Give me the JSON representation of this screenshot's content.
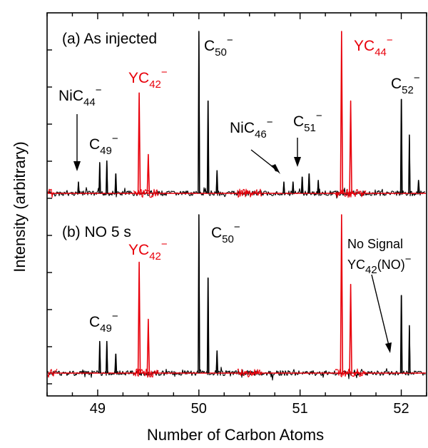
{
  "chart_data": {
    "type": "line",
    "xlabel": "Number of Carbon Atoms",
    "ylabel": "Intensity (arbitrary)",
    "xlim": [
      48.5,
      52.25
    ],
    "x_ticks": [
      "49",
      "50",
      "51",
      "52"
    ],
    "colors": {
      "black": "#000000",
      "red": "#e8000b",
      "baseline": "#e8000b"
    },
    "panels": [
      {
        "id": "a",
        "label": "(a) As injected",
        "black_peaks": [
          {
            "x": 48.81,
            "h": 0.07
          },
          {
            "x": 49.02,
            "h": 0.19
          },
          {
            "x": 49.09,
            "h": 0.2
          },
          {
            "x": 49.18,
            "h": 0.12
          },
          {
            "x": 50.0,
            "h": 1.0
          },
          {
            "x": 50.09,
            "h": 0.57
          },
          {
            "x": 50.18,
            "h": 0.14
          },
          {
            "x": 50.84,
            "h": 0.07
          },
          {
            "x": 50.93,
            "h": 0.07
          },
          {
            "x": 51.02,
            "h": 0.1
          },
          {
            "x": 51.09,
            "h": 0.12
          },
          {
            "x": 51.18,
            "h": 0.08
          },
          {
            "x": 52.0,
            "h": 0.58
          },
          {
            "x": 52.08,
            "h": 0.36
          },
          {
            "x": 52.17,
            "h": 0.08
          }
        ],
        "red_peaks": [
          {
            "x": 49.41,
            "h": 0.62
          },
          {
            "x": 49.5,
            "h": 0.24
          },
          {
            "x": 51.41,
            "h": 1.0
          },
          {
            "x": 51.5,
            "h": 0.57
          }
        ],
        "red_noise_regions": [
          [
            48.5,
            48.56
          ],
          [
            49.35,
            49.6
          ],
          [
            50.38,
            50.62
          ],
          [
            51.35,
            51.65
          ]
        ],
        "annotations": [
          {
            "base": "NiC",
            "sub": "44",
            "sup": "−",
            "color": "black"
          },
          {
            "base": "C",
            "sub": "49",
            "sup": "−",
            "color": "black"
          },
          {
            "base": "YC",
            "sub": "42",
            "sup": "−",
            "color": "red"
          },
          {
            "base": "C",
            "sub": "50",
            "sup": "−",
            "color": "black"
          },
          {
            "base": "NiC",
            "sub": "46",
            "sup": "−",
            "color": "black"
          },
          {
            "base": "C",
            "sub": "51",
            "sup": "−",
            "color": "black"
          },
          {
            "base": "YC",
            "sub": "44",
            "sup": "−",
            "color": "red"
          },
          {
            "base": "C",
            "sub": "52",
            "sup": "−",
            "color": "black"
          }
        ]
      },
      {
        "id": "b",
        "label": "(b) NO 5 s",
        "black_peaks": [
          {
            "x": 49.02,
            "h": 0.2
          },
          {
            "x": 49.09,
            "h": 0.2
          },
          {
            "x": 49.18,
            "h": 0.12
          },
          {
            "x": 50.0,
            "h": 1.0
          },
          {
            "x": 50.09,
            "h": 0.6
          },
          {
            "x": 50.18,
            "h": 0.14
          },
          {
            "x": 52.0,
            "h": 0.49
          },
          {
            "x": 52.08,
            "h": 0.3
          }
        ],
        "red_peaks": [
          {
            "x": 49.41,
            "h": 0.7
          },
          {
            "x": 49.5,
            "h": 0.34
          },
          {
            "x": 51.41,
            "h": 1.0
          },
          {
            "x": 51.5,
            "h": 0.56
          }
        ],
        "red_noise_regions": [
          [
            48.5,
            48.6
          ],
          [
            49.35,
            49.6
          ],
          [
            50.38,
            50.62
          ],
          [
            51.35,
            51.65
          ]
        ],
        "annotations": [
          {
            "base": "C",
            "sub": "49",
            "sup": "−",
            "color": "black"
          },
          {
            "base": "YC",
            "sub": "42",
            "sup": "−",
            "color": "red"
          },
          {
            "base": "C",
            "sub": "50",
            "sup": "−",
            "color": "black"
          }
        ],
        "no_signal_text": "No Signal",
        "no_signal_species": {
          "base": "YC",
          "sub": "42",
          "tail": "(NO)",
          "sup": "−"
        }
      }
    ]
  }
}
